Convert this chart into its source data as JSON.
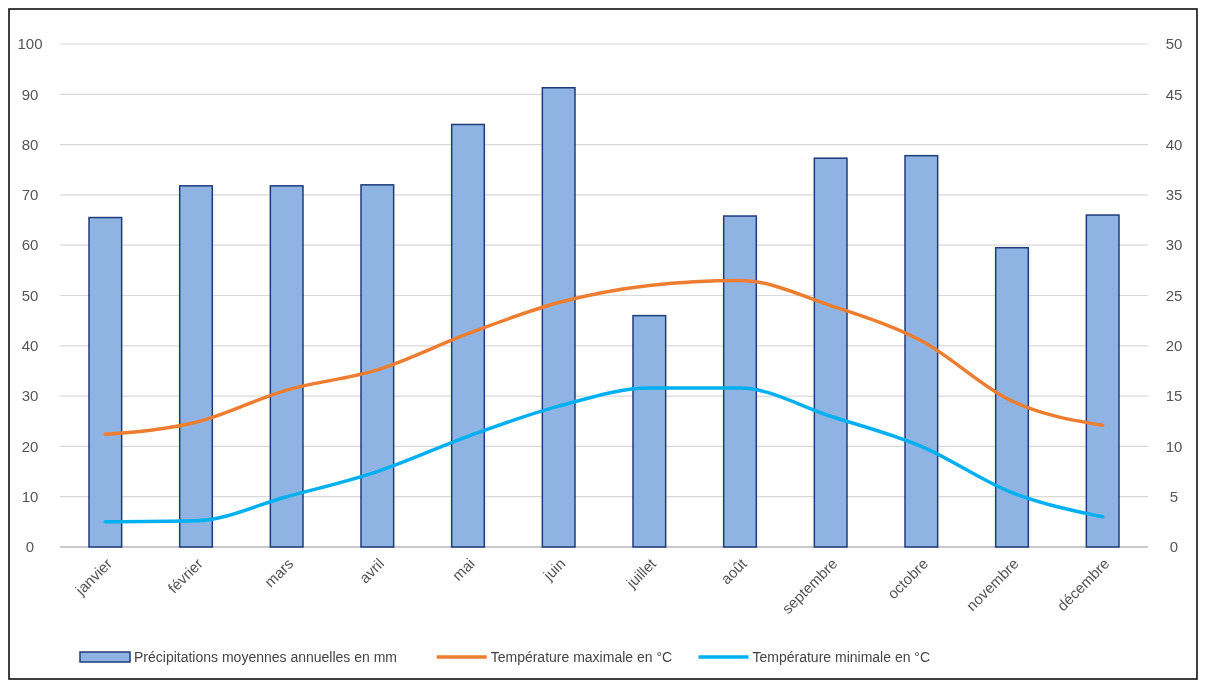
{
  "chart_data": {
    "type": "bar",
    "categories": [
      "janvier",
      "février",
      "mars",
      "avril",
      "mai",
      "juin",
      "juillet",
      "août",
      "septembre",
      "octobre",
      "novembre",
      "décembre"
    ],
    "series": [
      {
        "name": "Précipitations moyennes annuelles en mm",
        "color": "#8fb4e3",
        "values": [
          65.5,
          71.8,
          71.8,
          72,
          84,
          91.3,
          46,
          65.8,
          77.3,
          77.8,
          59.5,
          66
        ]
      },
      {
        "name": "Température maximale en °C",
        "type": "line",
        "axis": "y2",
        "color": "#ed7d31",
        "values": [
          11.2,
          12.4,
          15.6,
          17.6,
          21.2,
          24.3,
          26,
          26.5,
          24,
          20.5,
          14.5,
          12.1
        ]
      },
      {
        "name": "Température minimale en °C",
        "type": "line",
        "axis": "y2",
        "color": "#00b0f0",
        "values": [
          2.5,
          2.6,
          5,
          7.5,
          11,
          14,
          15.8,
          15.8,
          13,
          10,
          5.4,
          3
        ]
      }
    ],
    "ylim": [
      0,
      100
    ],
    "yticks": [
      0,
      10,
      20,
      30,
      40,
      50,
      60,
      70,
      80,
      90,
      100
    ],
    "y2lim": [
      0,
      50
    ],
    "y2ticks": [
      0,
      5,
      10,
      15,
      20,
      25,
      30,
      35,
      40,
      45,
      50
    ],
    "grid": "y",
    "legend": "bottom",
    "marker": "none",
    "line_style": "solid"
  }
}
